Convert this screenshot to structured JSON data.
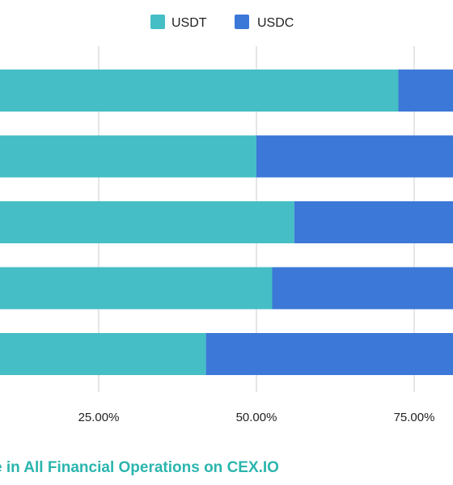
{
  "chart_data": {
    "type": "bar",
    "orientation": "horizontal",
    "stacked": true,
    "normalized": true,
    "categories": [
      "",
      "",
      "",
      "",
      ""
    ],
    "series": [
      {
        "name": "USDT",
        "values": [
          72.5,
          50.0,
          56.0,
          52.5,
          42.0
        ],
        "color": "#45bec5"
      },
      {
        "name": "USDC",
        "values": [
          27.5,
          50.0,
          44.0,
          47.5,
          58.0
        ],
        "color": "#3c78d8"
      }
    ],
    "xlim": [
      0,
      100
    ],
    "xticks": [
      {
        "value": 25,
        "label": "25.00%"
      },
      {
        "value": 50,
        "label": "50.00%"
      },
      {
        "value": 75,
        "label": "75.00%"
      }
    ],
    "grid": true,
    "legend_position": "top",
    "caption": "e in All Financial Operations on CEX.IO",
    "caption_color": "#2bb5ae",
    "gridline_color": "#cccccc"
  }
}
